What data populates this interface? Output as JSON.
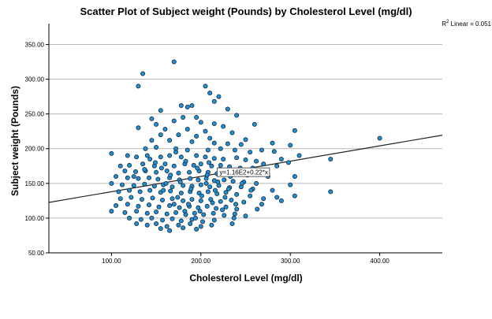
{
  "chart_data": {
    "type": "scatter",
    "title": "Scatter Plot of Subject weight (Pounds) by Cholesterol Level (mg/dl)",
    "xlabel": "Cholesterol Level (mg/dl)",
    "ylabel": "Subject weight (Pounds)",
    "xlim": [
      30,
      470
    ],
    "ylim": [
      50,
      380
    ],
    "x_ticks": [
      100,
      200,
      300,
      400
    ],
    "x_tick_labels": [
      "100.00",
      "200.00",
      "300.00",
      "400.00"
    ],
    "y_ticks": [
      50,
      100,
      150,
      200,
      250,
      300,
      350
    ],
    "y_tick_labels": [
      "50.00",
      "100.00",
      "150.00",
      "200.00",
      "250.00",
      "300.00",
      "350.00"
    ],
    "grid": "horizontal",
    "r2_label": {
      "prefix": "R",
      "sup": "2",
      "suffix": " Linear = 0.051"
    },
    "fit_line": {
      "intercept": 116,
      "slope": 0.22,
      "equation_label": "y=1.16E2+0.22*x",
      "label_x": 220
    },
    "point_color": "#1f8fd6",
    "points": [
      [
        130,
        290
      ],
      [
        135,
        308
      ],
      [
        170,
        325
      ],
      [
        178,
        262
      ],
      [
        185,
        260
      ],
      [
        190,
        262
      ],
      [
        205,
        290
      ],
      [
        210,
        280
      ],
      [
        215,
        268
      ],
      [
        220,
        275
      ],
      [
        155,
        255
      ],
      [
        145,
        243
      ],
      [
        180,
        245
      ],
      [
        195,
        245
      ],
      [
        230,
        257
      ],
      [
        240,
        248
      ],
      [
        150,
        235
      ],
      [
        170,
        240
      ],
      [
        200,
        238
      ],
      [
        215,
        236
      ],
      [
        225,
        232
      ],
      [
        260,
        235
      ],
      [
        130,
        230
      ],
      [
        160,
        228
      ],
      [
        185,
        228
      ],
      [
        205,
        225
      ],
      [
        235,
        223
      ],
      [
        155,
        220
      ],
      [
        175,
        220
      ],
      [
        195,
        218
      ],
      [
        210,
        215
      ],
      [
        250,
        213
      ],
      [
        145,
        212
      ],
      [
        165,
        212
      ],
      [
        190,
        210
      ],
      [
        215,
        208
      ],
      [
        230,
        207
      ],
      [
        245,
        206
      ],
      [
        280,
        208
      ],
      [
        305,
        226
      ],
      [
        300,
        205
      ],
      [
        138,
        200
      ],
      [
        150,
        202
      ],
      [
        172,
        200
      ],
      [
        185,
        198
      ],
      [
        208,
        198
      ],
      [
        222,
        200
      ],
      [
        238,
        198
      ],
      [
        255,
        195
      ],
      [
        268,
        198
      ],
      [
        282,
        196
      ],
      [
        290,
        185
      ],
      [
        310,
        190
      ],
      [
        345,
        185
      ],
      [
        400,
        215
      ],
      [
        100,
        193
      ],
      [
        118,
        190
      ],
      [
        128,
        188
      ],
      [
        140,
        190
      ],
      [
        155,
        188
      ],
      [
        165,
        190
      ],
      [
        178,
        188
      ],
      [
        195,
        190
      ],
      [
        205,
        188
      ],
      [
        215,
        186
      ],
      [
        225,
        185
      ],
      [
        240,
        187
      ],
      [
        250,
        184
      ],
      [
        262,
        182
      ],
      [
        270,
        178
      ],
      [
        298,
        180
      ],
      [
        110,
        175
      ],
      [
        120,
        176
      ],
      [
        135,
        178
      ],
      [
        148,
        175
      ],
      [
        160,
        178
      ],
      [
        170,
        175
      ],
      [
        182,
        178
      ],
      [
        192,
        176
      ],
      [
        200,
        178
      ],
      [
        212,
        175
      ],
      [
        222,
        176
      ],
      [
        232,
        174
      ],
      [
        244,
        172
      ],
      [
        258,
        172
      ],
      [
        285,
        175
      ],
      [
        115,
        168
      ],
      [
        127,
        167
      ],
      [
        138,
        168
      ],
      [
        150,
        166
      ],
      [
        162,
        168
      ],
      [
        175,
        165
      ],
      [
        187,
        166
      ],
      [
        198,
        168
      ],
      [
        208,
        166
      ],
      [
        218,
        164
      ],
      [
        228,
        166
      ],
      [
        240,
        165
      ],
      [
        252,
        162
      ],
      [
        275,
        160
      ],
      [
        105,
        160
      ],
      [
        118,
        158
      ],
      [
        130,
        157
      ],
      [
        142,
        158
      ],
      [
        152,
        156
      ],
      [
        165,
        158
      ],
      [
        176,
        155
      ],
      [
        188,
        157
      ],
      [
        197,
        155
      ],
      [
        206,
        157
      ],
      [
        215,
        154
      ],
      [
        226,
        155
      ],
      [
        236,
        153
      ],
      [
        248,
        152
      ],
      [
        262,
        150
      ],
      [
        300,
        148
      ],
      [
        305,
        160
      ],
      [
        100,
        150
      ],
      [
        112,
        148
      ],
      [
        125,
        147
      ],
      [
        137,
        149
      ],
      [
        148,
        146
      ],
      [
        158,
        148
      ],
      [
        168,
        145
      ],
      [
        180,
        147
      ],
      [
        190,
        146
      ],
      [
        200,
        148
      ],
      [
        210,
        145
      ],
      [
        220,
        147
      ],
      [
        232,
        144
      ],
      [
        245,
        145
      ],
      [
        258,
        142
      ],
      [
        280,
        140
      ],
      [
        345,
        138
      ],
      [
        108,
        138
      ],
      [
        120,
        140
      ],
      [
        132,
        138
      ],
      [
        143,
        140
      ],
      [
        155,
        137
      ],
      [
        166,
        139
      ],
      [
        178,
        136
      ],
      [
        188,
        138
      ],
      [
        198,
        136
      ],
      [
        208,
        138
      ],
      [
        218,
        135
      ],
      [
        228,
        137
      ],
      [
        240,
        134
      ],
      [
        255,
        132
      ],
      [
        285,
        130
      ],
      [
        305,
        132
      ],
      [
        110,
        128
      ],
      [
        122,
        130
      ],
      [
        134,
        127
      ],
      [
        146,
        129
      ],
      [
        157,
        126
      ],
      [
        168,
        128
      ],
      [
        180,
        125
      ],
      [
        190,
        127
      ],
      [
        200,
        125
      ],
      [
        211,
        127
      ],
      [
        222,
        124
      ],
      [
        234,
        126
      ],
      [
        248,
        123
      ],
      [
        270,
        128
      ],
      [
        290,
        125
      ],
      [
        105,
        118
      ],
      [
        118,
        120
      ],
      [
        130,
        117
      ],
      [
        142,
        119
      ],
      [
        153,
        116
      ],
      [
        165,
        118
      ],
      [
        176,
        115
      ],
      [
        187,
        117
      ],
      [
        197,
        115
      ],
      [
        207,
        117
      ],
      [
        217,
        114
      ],
      [
        228,
        116
      ],
      [
        240,
        113
      ],
      [
        263,
        113
      ],
      [
        100,
        110
      ],
      [
        115,
        108
      ],
      [
        128,
        110
      ],
      [
        140,
        107
      ],
      [
        150,
        109
      ],
      [
        162,
        106
      ],
      [
        172,
        108
      ],
      [
        183,
        105
      ],
      [
        193,
        107
      ],
      [
        203,
        105
      ],
      [
        214,
        107
      ],
      [
        226,
        104
      ],
      [
        238,
        106
      ],
      [
        250,
        103
      ],
      [
        120,
        100
      ],
      [
        133,
        98
      ],
      [
        145,
        100
      ],
      [
        157,
        97
      ],
      [
        168,
        99
      ],
      [
        178,
        96
      ],
      [
        190,
        98
      ],
      [
        202,
        95
      ],
      [
        215,
        97
      ],
      [
        128,
        92
      ],
      [
        140,
        90
      ],
      [
        150,
        92
      ],
      [
        162,
        88
      ],
      [
        175,
        90
      ],
      [
        188,
        92
      ],
      [
        200,
        88
      ],
      [
        212,
        90
      ],
      [
        235,
        92
      ],
      [
        155,
        85
      ],
      [
        165,
        82
      ],
      [
        180,
        86
      ],
      [
        195,
        84
      ],
      [
        172,
        195
      ],
      [
        183,
        182
      ],
      [
        196,
        172
      ],
      [
        207,
        162
      ],
      [
        219,
        152
      ],
      [
        231,
        142
      ],
      [
        143,
        185
      ],
      [
        156,
        172
      ],
      [
        166,
        162
      ],
      [
        177,
        152
      ],
      [
        189,
        142
      ],
      [
        201,
        132
      ],
      [
        213,
        122
      ],
      [
        224,
        112
      ],
      [
        237,
        100
      ],
      [
        125,
        160
      ],
      [
        137,
        170
      ],
      [
        149,
        180
      ],
      [
        161,
        150
      ],
      [
        174,
        130
      ],
      [
        186,
        120
      ],
      [
        199,
        110
      ],
      [
        209,
        180
      ],
      [
        221,
        170
      ],
      [
        233,
        160
      ],
      [
        246,
        150
      ],
      [
        256,
        140
      ],
      [
        268,
        120
      ],
      [
        158,
        140
      ],
      [
        170,
        120
      ],
      [
        182,
        110
      ],
      [
        194,
        100
      ],
      [
        206,
        150
      ],
      [
        216,
        140
      ],
      [
        227,
        130
      ],
      [
        239,
        120
      ]
    ]
  }
}
